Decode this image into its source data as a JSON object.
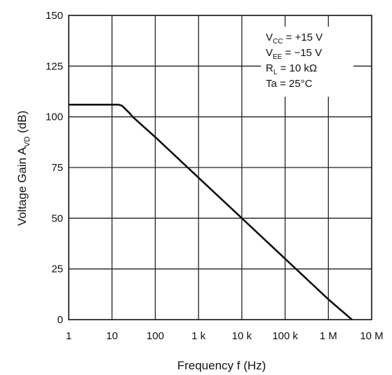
{
  "chart_data": {
    "type": "line",
    "title": "",
    "xlabel": "Frequency f (Hz)",
    "ylabel": {
      "main": "Voltage Gain A",
      "sub": "VD",
      "unit": " (dB)"
    },
    "xscale": "log",
    "x_ticks": [
      {
        "value": 1,
        "label": "1"
      },
      {
        "value": 10,
        "label": "10"
      },
      {
        "value": 100,
        "label": "100"
      },
      {
        "value": 1000,
        "label": "1 k"
      },
      {
        "value": 10000,
        "label": "10 k"
      },
      {
        "value": 100000,
        "label": "100 k"
      },
      {
        "value": 1000000,
        "label": "1 M"
      },
      {
        "value": 10000000,
        "label": "10 M"
      }
    ],
    "y_ticks": [
      0,
      25,
      50,
      75,
      100,
      125,
      150
    ],
    "xlim": [
      1,
      10000000
    ],
    "ylim": [
      0,
      150
    ],
    "grid": true,
    "series": [
      {
        "x": [
          1,
          10,
          14,
          17,
          20,
          25,
          30,
          100,
          1000,
          10000,
          100000,
          1000000,
          3500000
        ],
        "y": [
          106,
          106,
          106,
          105.5,
          104,
          102,
          100,
          90,
          70,
          50,
          30,
          10,
          0
        ]
      }
    ],
    "conditions": [
      {
        "main": "V",
        "sub": "CC",
        "rest": " = +15 V"
      },
      {
        "main": "V",
        "sub": "EE",
        "rest": " = −15 V"
      },
      {
        "main": "R",
        "sub": "L",
        "rest": " = 10 kΩ"
      },
      {
        "main": "Ta = 25°C",
        "sub": "",
        "rest": ""
      }
    ]
  }
}
